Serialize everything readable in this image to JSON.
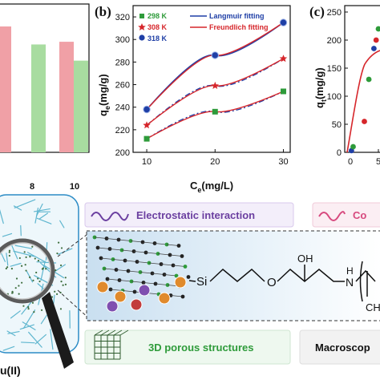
{
  "panel_b": {
    "label": "(b)",
    "ylabel_main": "q",
    "ylabel_sub": "e",
    "ylabel_unit": "(mg/g)",
    "xlabel_main": "C",
    "xlabel_sub": "e",
    "xlabel_unit": "(mg/L)",
    "legend_langmuir": "Langmuir fitting",
    "legend_freundlich": "Freundlich fitting"
  },
  "panel_c": {
    "label": "(c)",
    "ylabel_main": "q",
    "ylabel_sub": "t",
    "ylabel_unit": "(mg/g)"
  },
  "panel_a_partial": {
    "xticks": [
      "8",
      "10"
    ]
  },
  "bottom": {
    "electrostatic_label": "Electrostatic interaction",
    "co_label": "Co",
    "porous_label": "3D porous structures",
    "macroscopic_label": "Macroscop",
    "cu_label": "u(II)",
    "si_label": "Si",
    "o_label": "O",
    "oh_label": "OH",
    "h_label": "H",
    "n_label": "N",
    "ch_label": "CH"
  },
  "colors": {
    "green_298": "#2e9b3a",
    "red_308": "#d6262b",
    "blue_318": "#1f3fa6",
    "bar_red": "#f0a0a6",
    "bar_green": "#a8dca0",
    "banner_purple": "#6b3fa0",
    "banner_pink": "#d7497e"
  },
  "chart_data": [
    {
      "type": "scatter",
      "title": "",
      "xlabel": "Ce(mg/L)",
      "ylabel": "qe(mg/g)",
      "xlim": [
        8,
        31
      ],
      "ylim": [
        200,
        330
      ],
      "xticks": [
        10,
        20,
        30
      ],
      "yticks": [
        200,
        220,
        240,
        260,
        280,
        300,
        320
      ],
      "legend_position": "top-left",
      "series": [
        {
          "name": "298 K",
          "marker": "square",
          "color": "#2e9b3a",
          "x": [
            10,
            20,
            30
          ],
          "y": [
            212,
            236,
            254
          ]
        },
        {
          "name": "308 K",
          "marker": "star",
          "color": "#d6262b",
          "x": [
            10,
            20,
            30
          ],
          "y": [
            224,
            259,
            283
          ]
        },
        {
          "name": "318 K",
          "marker": "circle",
          "color": "#1f3fa6",
          "x": [
            10,
            20,
            30
          ],
          "y": [
            238,
            286,
            315
          ]
        }
      ],
      "fits": [
        {
          "name": "Langmuir fitting",
          "style": "dashdot",
          "color": "#1f3fa6"
        },
        {
          "name": "Freundlich fitting",
          "style": "solid",
          "color": "#d6262b"
        }
      ]
    },
    {
      "type": "scatter",
      "title": "",
      "xlabel": "",
      "ylabel": "qt(mg/g)",
      "ylim": [
        0,
        250
      ],
      "yticks": [
        0,
        50,
        100,
        150,
        200,
        250
      ],
      "xticks_visible": [
        "0",
        "5"
      ],
      "series": [
        {
          "points_t": [
            0.2,
            0.5,
            2.5,
            3.3,
            4.2,
            4.6,
            5.0
          ],
          "points_q": [
            3,
            10,
            55,
            130,
            185,
            200,
            220
          ]
        }
      ]
    },
    {
      "type": "bar",
      "title": "",
      "categories": [
        "8",
        "10"
      ],
      "series": [
        {
          "values": [
            null,
            82
          ]
        },
        {
          "values": [
            80,
            68
          ]
        }
      ]
    }
  ]
}
